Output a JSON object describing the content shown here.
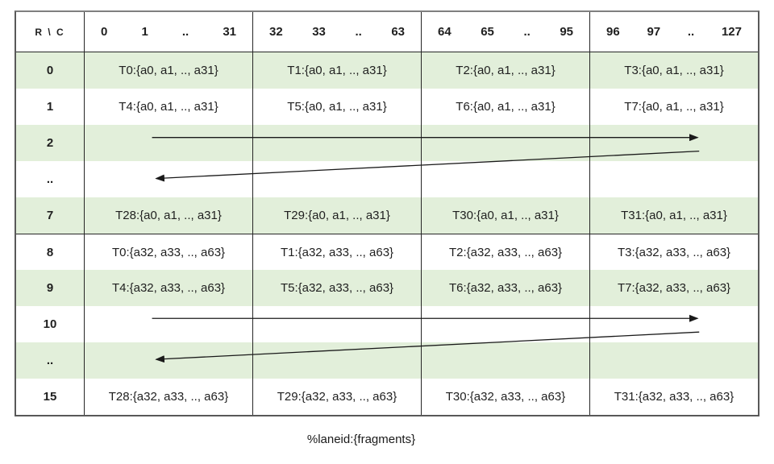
{
  "table": {
    "corner_label": "R \\ C",
    "column_headers": [
      [
        "0",
        "1",
        "..",
        "31"
      ],
      [
        "32",
        "33",
        "..",
        "63"
      ],
      [
        "64",
        "65",
        "..",
        "95"
      ],
      [
        "96",
        "97",
        "..",
        "127"
      ]
    ],
    "rows": [
      {
        "label": "0",
        "shaded": true,
        "cells": [
          "T0:{a0, a1, .., a31}",
          "T1:{a0, a1, .., a31}",
          "T2:{a0, a1, .., a31}",
          "T3:{a0, a1, .., a31}"
        ]
      },
      {
        "label": "1",
        "shaded": false,
        "cells": [
          "T4:{a0, a1, .., a31}",
          "T5:{a0, a1, .., a31}",
          "T6:{a0, a1, .., a31}",
          "T7:{a0, a1, .., a31}"
        ]
      },
      {
        "label": "2",
        "shaded": true,
        "cells": [
          "",
          "",
          "",
          ""
        ]
      },
      {
        "label": "..",
        "shaded": false,
        "cells": [
          "",
          "",
          "",
          ""
        ]
      },
      {
        "label": "7",
        "shaded": true,
        "cells": [
          "T28:{a0, a1, .., a31}",
          "T29:{a0, a1, .., a31}",
          "T30:{a0, a1, .., a31}",
          "T31:{a0, a1, .., a31}"
        ]
      },
      {
        "label": "8",
        "shaded": false,
        "divider_above": true,
        "cells": [
          "T0:{a32, a33, .., a63}",
          "T1:{a32, a33, .., a63}",
          "T2:{a32, a33, .., a63}",
          "T3:{a32, a33, .., a63}"
        ]
      },
      {
        "label": "9",
        "shaded": true,
        "cells": [
          "T4:{a32, a33, .., a63}",
          "T5:{a32, a33, .., a63}",
          "T6:{a32, a33, .., a63}",
          "T7:{a32, a33, .., a63}"
        ]
      },
      {
        "label": "10",
        "shaded": false,
        "cells": [
          "",
          "",
          "",
          ""
        ]
      },
      {
        "label": "..",
        "shaded": true,
        "cells": [
          "",
          "",
          "",
          ""
        ]
      },
      {
        "label": "15",
        "shaded": false,
        "cells": [
          "T28:{a32, a33, .., a63}",
          "T29:{a32, a33, .., a63}",
          "T30:{a32, a33, .., a63}",
          "T31:{a32, a33, .., a63}"
        ]
      }
    ],
    "arrows": [
      {
        "type": "right",
        "row_index": 2
      },
      {
        "type": "wrap-left",
        "row_index": 3
      },
      {
        "type": "right",
        "row_index": 7
      },
      {
        "type": "wrap-left",
        "row_index": 8
      }
    ]
  },
  "caption": "%laneid:{fragments}",
  "colors": {
    "shaded_row": "#e2efda",
    "border": "#404040",
    "arrow": "#1a1a1a",
    "text": "#1f1f1f",
    "background": "#ffffff"
  }
}
